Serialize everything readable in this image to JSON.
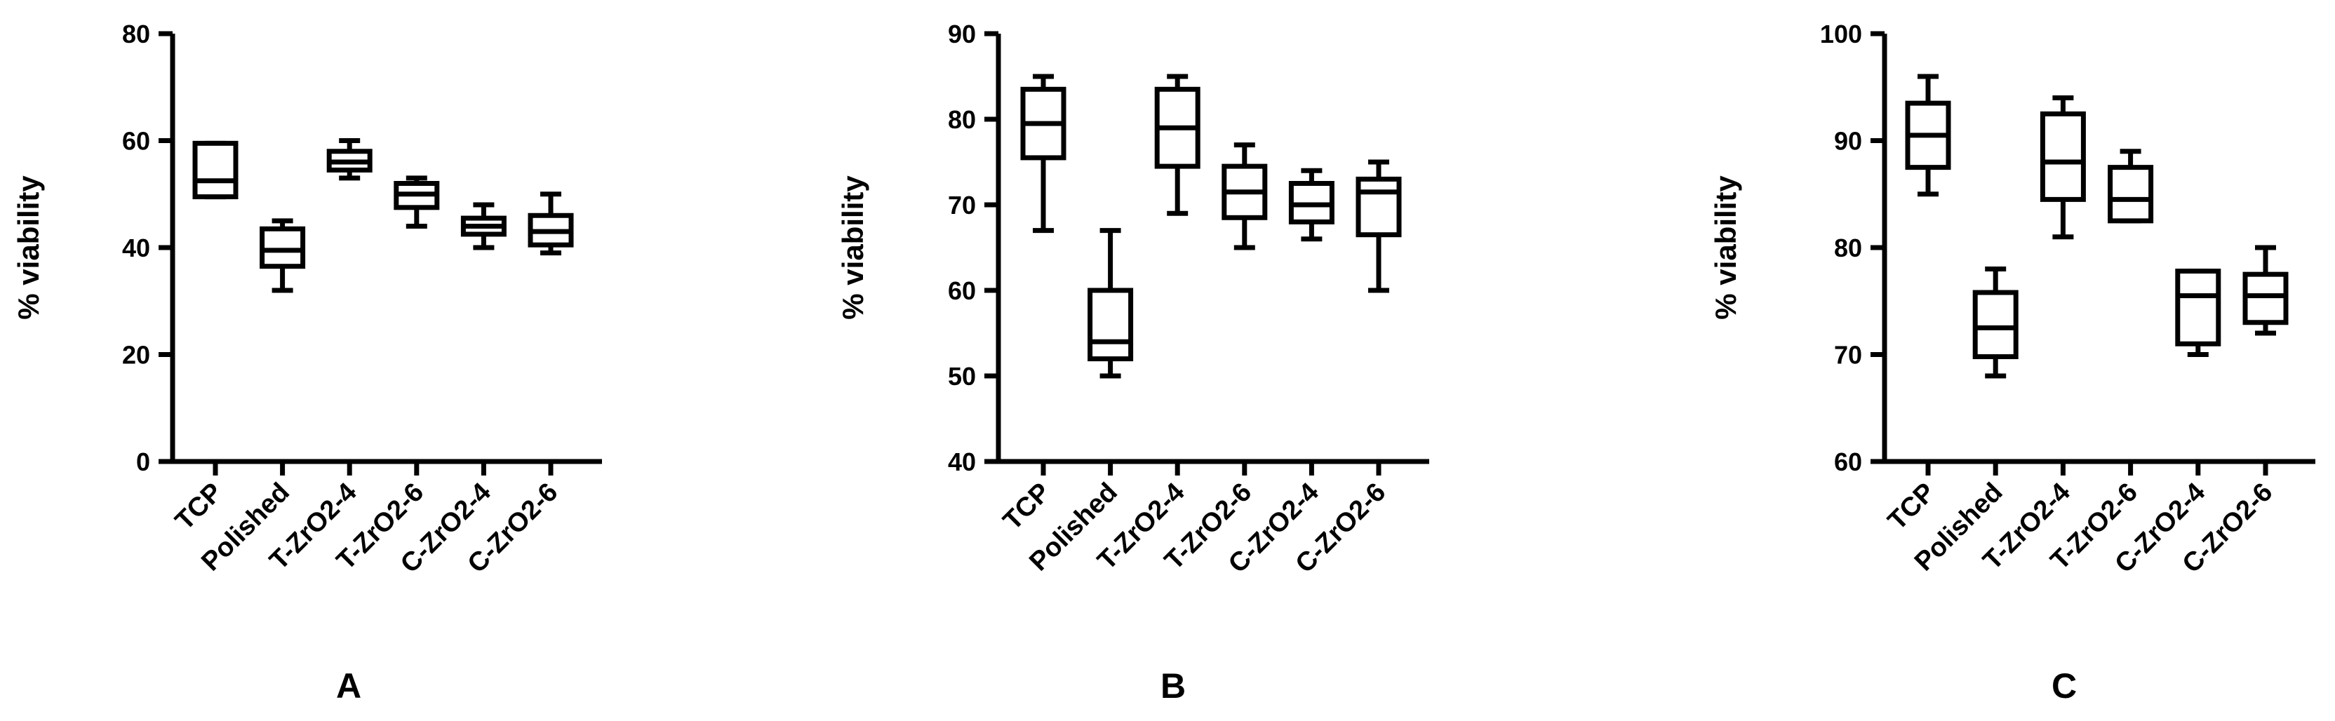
{
  "chart_data": [
    {
      "type": "box",
      "panel_label": "A",
      "ylabel": "% viability",
      "xlabel": "",
      "ylim": [
        0,
        80
      ],
      "yticks": [
        0,
        20,
        40,
        60,
        80
      ],
      "categories": [
        "TCP",
        "Polished",
        "T-ZrO2-4",
        "T-ZrO2-6",
        "C-ZrO2-4",
        "C-ZrO2-6"
      ],
      "boxes": [
        {
          "category": "TCP",
          "min": 49.5,
          "q1": 49.5,
          "median": 52.5,
          "q3": 59.5,
          "max": 59.5
        },
        {
          "category": "Polished",
          "min": 32,
          "q1": 36.5,
          "median": 39.5,
          "q3": 43.5,
          "max": 45
        },
        {
          "category": "T-ZrO2-4",
          "min": 53,
          "q1": 54.5,
          "median": 56,
          "q3": 58,
          "max": 60
        },
        {
          "category": "T-ZrO2-6",
          "min": 44,
          "q1": 47.5,
          "median": 50,
          "q3": 52,
          "max": 53
        },
        {
          "category": "C-ZrO2-4",
          "min": 40,
          "q1": 42.5,
          "median": 44,
          "q3": 45.5,
          "max": 48
        },
        {
          "category": "C-ZrO2-6",
          "min": 39,
          "q1": 40.5,
          "median": 43,
          "q3": 46,
          "max": 50
        }
      ]
    },
    {
      "type": "box",
      "panel_label": "B",
      "ylabel": "% viability",
      "xlabel": "",
      "ylim": [
        40,
        90
      ],
      "yticks": [
        40,
        50,
        60,
        70,
        80,
        90
      ],
      "categories": [
        "TCP",
        "Polished",
        "T-ZrO2-4",
        "T-ZrO2-6",
        "C-ZrO2-4",
        "C-ZrO2-6"
      ],
      "boxes": [
        {
          "category": "TCP",
          "min": 67,
          "q1": 75.5,
          "median": 79.5,
          "q3": 83.5,
          "max": 85
        },
        {
          "category": "Polished",
          "min": 50,
          "q1": 52,
          "median": 54,
          "q3": 60,
          "max": 67
        },
        {
          "category": "T-ZrO2-4",
          "min": 69,
          "q1": 74.5,
          "median": 79,
          "q3": 83.5,
          "max": 85
        },
        {
          "category": "T-ZrO2-6",
          "min": 65,
          "q1": 68.5,
          "median": 71.5,
          "q3": 74.5,
          "max": 77
        },
        {
          "category": "C-ZrO2-4",
          "min": 66,
          "q1": 68,
          "median": 70,
          "q3": 72.5,
          "max": 74
        },
        {
          "category": "C-ZrO2-6",
          "min": 60,
          "q1": 66.5,
          "median": 71.5,
          "q3": 73,
          "max": 75
        }
      ]
    },
    {
      "type": "box",
      "panel_label": "C",
      "ylabel": "% viability",
      "xlabel": "",
      "ylim": [
        60,
        100
      ],
      "yticks": [
        60,
        70,
        80,
        90,
        100
      ],
      "categories": [
        "TCP",
        "Polished",
        "T-ZrO2-4",
        "T-ZrO2-6",
        "C-ZrO2-4",
        "C-ZrO2-6"
      ],
      "boxes": [
        {
          "category": "TCP",
          "min": 85,
          "q1": 87.5,
          "median": 90.5,
          "q3": 93.5,
          "max": 96
        },
        {
          "category": "Polished",
          "min": 68,
          "q1": 69.8,
          "median": 72.5,
          "q3": 75.8,
          "max": 78
        },
        {
          "category": "T-ZrO2-4",
          "min": 81,
          "q1": 84.5,
          "median": 88,
          "q3": 92.5,
          "max": 94
        },
        {
          "category": "T-ZrO2-6",
          "min": 82.5,
          "q1": 82.5,
          "median": 84.5,
          "q3": 87.5,
          "max": 89
        },
        {
          "category": "C-ZrO2-4",
          "min": 70,
          "q1": 71,
          "median": 75.5,
          "q3": 77.8,
          "max": 77.8
        },
        {
          "category": "C-ZrO2-6",
          "min": 72,
          "q1": 73,
          "median": 75.5,
          "q3": 77.5,
          "max": 80
        }
      ]
    }
  ]
}
